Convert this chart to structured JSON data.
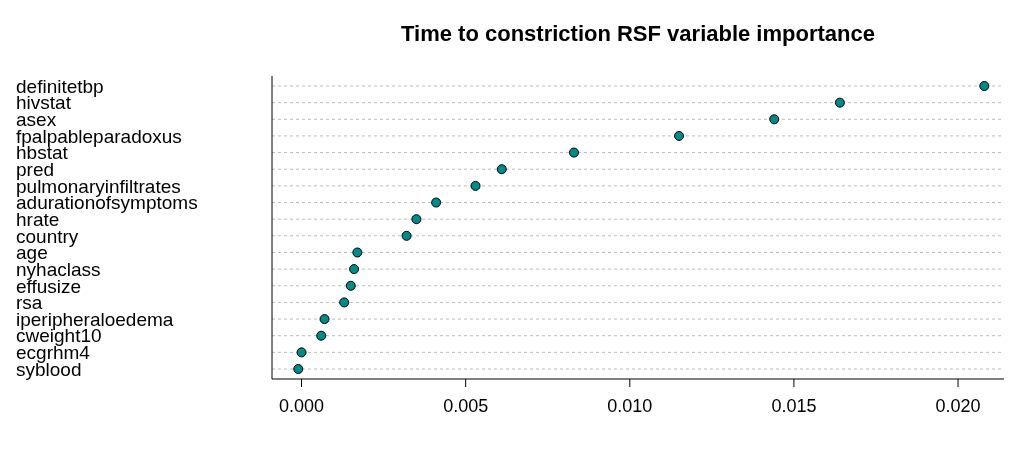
{
  "chart_data": {
    "type": "scatter",
    "orientation": "horizontal",
    "title": "Time to constriction RSF variable importance",
    "categories": [
      "definitetbp",
      "hivstat",
      "asex",
      "fpalpableparadoxus",
      "hbstat",
      "pred",
      "pulmonaryinfiltrates",
      "adurationofsymptoms",
      "hrate",
      "country",
      "age",
      "nyhaclass",
      "effusize",
      "rsa",
      "iperipheraloedema",
      "cweight10",
      "ecgrhm4",
      "syblood"
    ],
    "values": [
      0.0208,
      0.0164,
      0.0144,
      0.0115,
      0.0083,
      0.0061,
      0.0053,
      0.0041,
      0.0035,
      0.0032,
      0.0017,
      0.0016,
      0.0015,
      0.0013,
      0.0007,
      0.0006,
      0.0,
      -0.0001
    ],
    "color": "#008b8b",
    "marker": "circle",
    "grid": "y",
    "xlim": [
      -0.0009,
      0.0214
    ],
    "xticks": [
      {
        "value": 0,
        "label": "0.000"
      },
      {
        "value": 0.005,
        "label": "0.005"
      },
      {
        "value": 0.01,
        "label": "0.010"
      },
      {
        "value": 0.015,
        "label": "0.015"
      },
      {
        "value": 0.02,
        "label": "0.020"
      }
    ]
  }
}
